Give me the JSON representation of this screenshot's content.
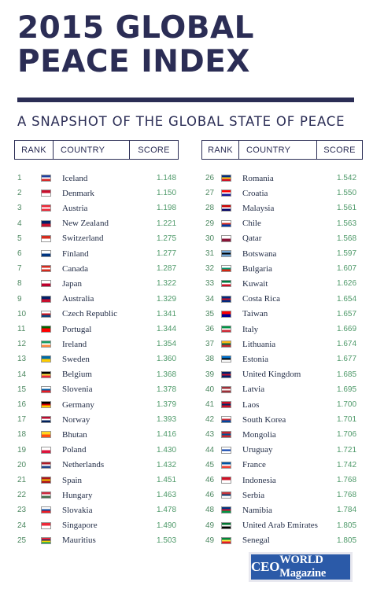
{
  "header": {
    "title_line1": "2015 GLOBAL",
    "title_line2": "PEACE INDEX",
    "subtitle": "A SNAPSHOT OF THE GLOBAL STATE OF PEACE"
  },
  "columns": {
    "rank": "RANK",
    "country": "COUNTRY",
    "score": "SCORE"
  },
  "brand": {
    "logo_ceo": "CEO",
    "logo_rest": "WORLD Magazine"
  },
  "colors": {
    "navy": "#2b2d55",
    "score_green": "#4f9a6a",
    "logo_blue": "#2b5aa8"
  },
  "chart_data": {
    "type": "table",
    "title": "2015 GLOBAL PEACE INDEX",
    "subtitle": "A SNAPSHOT OF THE GLOBAL STATE OF PEACE",
    "headers": [
      "RANK",
      "COUNTRY",
      "SCORE"
    ],
    "rows": [
      {
        "rank": "1",
        "country": "Iceland",
        "score": "1.148",
        "flag": [
          "#1f3f9e",
          "#ffffff",
          "#d72828"
        ]
      },
      {
        "rank": "2",
        "country": "Denmark",
        "score": "1.150",
        "flag": [
          "#c8102e",
          "#ffffff"
        ]
      },
      {
        "rank": "3",
        "country": "Austria",
        "score": "1.198",
        "flag": [
          "#ed2939",
          "#ffffff",
          "#ed2939"
        ]
      },
      {
        "rank": "4",
        "country": "New Zealand",
        "score": "1.221",
        "flag": [
          "#012169",
          "#c8102e"
        ]
      },
      {
        "rank": "5",
        "country": "Switzerland",
        "score": "1.275",
        "flag": [
          "#d52b1e",
          "#ffffff"
        ]
      },
      {
        "rank": "6",
        "country": "Finland",
        "score": "1.277",
        "flag": [
          "#ffffff",
          "#003580"
        ]
      },
      {
        "rank": "7",
        "country": "Canada",
        "score": "1.287",
        "flag": [
          "#d52b1e",
          "#ffffff",
          "#d52b1e"
        ]
      },
      {
        "rank": "8",
        "country": "Japan",
        "score": "1.322",
        "flag": [
          "#ffffff",
          "#bc002d"
        ]
      },
      {
        "rank": "9",
        "country": "Australia",
        "score": "1.329",
        "flag": [
          "#012169",
          "#c8102e"
        ]
      },
      {
        "rank": "10",
        "country": "Czech Republic",
        "score": "1.341",
        "flag": [
          "#ffffff",
          "#d7141a",
          "#11457e"
        ]
      },
      {
        "rank": "11",
        "country": "Portugal",
        "score": "1.344",
        "flag": [
          "#006600",
          "#ff0000",
          "#ff0000"
        ]
      },
      {
        "rank": "12",
        "country": "Ireland",
        "score": "1.354",
        "flag": [
          "#169b62",
          "#ffffff",
          "#ff883e"
        ]
      },
      {
        "rank": "13",
        "country": "Sweden",
        "score": "1.360",
        "flag": [
          "#006aa7",
          "#fecc00"
        ]
      },
      {
        "rank": "14",
        "country": "Belgium",
        "score": "1.368",
        "flag": [
          "#000000",
          "#fae042",
          "#ed2939"
        ]
      },
      {
        "rank": "15",
        "country": "Slovenia",
        "score": "1.378",
        "flag": [
          "#ffffff",
          "#005da4",
          "#ed1c24"
        ]
      },
      {
        "rank": "16",
        "country": "Germany",
        "score": "1.379",
        "flag": [
          "#000000",
          "#dd0000",
          "#ffce00"
        ]
      },
      {
        "rank": "17",
        "country": "Norway",
        "score": "1.393",
        "flag": [
          "#ba0c2f",
          "#ffffff",
          "#00205b"
        ]
      },
      {
        "rank": "18",
        "country": "Bhutan",
        "score": "1.416",
        "flag": [
          "#ffd520",
          "#ff4e12"
        ]
      },
      {
        "rank": "19",
        "country": "Poland",
        "score": "1.430",
        "flag": [
          "#ffffff",
          "#dc143c"
        ]
      },
      {
        "rank": "20",
        "country": "Netherlands",
        "score": "1.432",
        "flag": [
          "#ae1c28",
          "#ffffff",
          "#21468b"
        ]
      },
      {
        "rank": "21",
        "country": "Spain",
        "score": "1.451",
        "flag": [
          "#aa151b",
          "#f1bf00",
          "#aa151b"
        ]
      },
      {
        "rank": "22",
        "country": "Hungary",
        "score": "1.463",
        "flag": [
          "#cd2a3e",
          "#ffffff",
          "#436f4d"
        ]
      },
      {
        "rank": "23",
        "country": "Slovakia",
        "score": "1.478",
        "flag": [
          "#ffffff",
          "#0b4ea2",
          "#ee1c25"
        ]
      },
      {
        "rank": "24",
        "country": "Singapore",
        "score": "1.490",
        "flag": [
          "#ed2939",
          "#ffffff"
        ]
      },
      {
        "rank": "25",
        "country": "Mauritius",
        "score": "1.503",
        "flag": [
          "#ea2839",
          "#1a206d",
          "#ffd500",
          "#00a551"
        ]
      },
      {
        "rank": "26",
        "country": "Romania",
        "score": "1.542",
        "flag": [
          "#002b7f",
          "#fcd116",
          "#ce1126"
        ]
      },
      {
        "rank": "27",
        "country": "Croatia",
        "score": "1.550",
        "flag": [
          "#ff0000",
          "#ffffff",
          "#171796"
        ]
      },
      {
        "rank": "28",
        "country": "Malaysia",
        "score": "1.561",
        "flag": [
          "#cc0001",
          "#ffffff",
          "#010066"
        ]
      },
      {
        "rank": "29",
        "country": "Chile",
        "score": "1.563",
        "flag": [
          "#ffffff",
          "#d52b1e",
          "#0039a6"
        ]
      },
      {
        "rank": "30",
        "country": "Qatar",
        "score": "1.568",
        "flag": [
          "#ffffff",
          "#8a1538"
        ]
      },
      {
        "rank": "31",
        "country": "Botswana",
        "score": "1.597",
        "flag": [
          "#75aadb",
          "#000000",
          "#75aadb"
        ]
      },
      {
        "rank": "32",
        "country": "Bulgaria",
        "score": "1.607",
        "flag": [
          "#ffffff",
          "#00966e",
          "#d62612"
        ]
      },
      {
        "rank": "33",
        "country": "Kuwait",
        "score": "1.626",
        "flag": [
          "#007a3d",
          "#ffffff",
          "#ce1126"
        ]
      },
      {
        "rank": "34",
        "country": "Costa Rica",
        "score": "1.654",
        "flag": [
          "#002b7f",
          "#ce1126",
          "#002b7f"
        ]
      },
      {
        "rank": "35",
        "country": "Taiwan",
        "score": "1.657",
        "flag": [
          "#fe0000",
          "#000095"
        ]
      },
      {
        "rank": "36",
        "country": "Italy",
        "score": "1.669",
        "flag": [
          "#009246",
          "#ffffff",
          "#ce2b37"
        ]
      },
      {
        "rank": "37",
        "country": "Lithuania",
        "score": "1.674",
        "flag": [
          "#fdb913",
          "#006a44",
          "#c1272d"
        ]
      },
      {
        "rank": "38",
        "country": "Estonia",
        "score": "1.677",
        "flag": [
          "#0072ce",
          "#000000",
          "#ffffff"
        ]
      },
      {
        "rank": "39",
        "country": "United Kingdom",
        "score": "1.685",
        "flag": [
          "#012169",
          "#c8102e",
          "#012169"
        ]
      },
      {
        "rank": "40",
        "country": "Latvia",
        "score": "1.695",
        "flag": [
          "#9e3039",
          "#ffffff",
          "#9e3039"
        ]
      },
      {
        "rank": "41",
        "country": "Laos",
        "score": "1.700",
        "flag": [
          "#ce1126",
          "#002868",
          "#ce1126"
        ]
      },
      {
        "rank": "42",
        "country": "South Korea",
        "score": "1.701",
        "flag": [
          "#ffffff",
          "#cd2e3a",
          "#0047a0"
        ]
      },
      {
        "rank": "43",
        "country": "Mongolia",
        "score": "1.706",
        "flag": [
          "#c4272f",
          "#015197",
          "#c4272f"
        ]
      },
      {
        "rank": "44",
        "country": "Uruguay",
        "score": "1.721",
        "flag": [
          "#ffffff",
          "#0038a8",
          "#ffffff"
        ]
      },
      {
        "rank": "45",
        "country": "France",
        "score": "1.742",
        "flag": [
          "#0055a4",
          "#ffffff",
          "#ef4135"
        ]
      },
      {
        "rank": "46",
        "country": "Indonesia",
        "score": "1.768",
        "flag": [
          "#ce1126",
          "#ffffff"
        ]
      },
      {
        "rank": "46",
        "country": "Serbia",
        "score": "1.768",
        "flag": [
          "#c6363c",
          "#0c4076",
          "#ffffff"
        ]
      },
      {
        "rank": "48",
        "country": "Namibia",
        "score": "1.784",
        "flag": [
          "#003580",
          "#d21034",
          "#009543"
        ]
      },
      {
        "rank": "49",
        "country": "United Arab Emirates",
        "score": "1.805",
        "flag": [
          "#00732f",
          "#ffffff",
          "#000000"
        ]
      },
      {
        "rank": "49",
        "country": "Senegal",
        "score": "1.805",
        "flag": [
          "#00853f",
          "#fdef42",
          "#e31b23"
        ]
      }
    ]
  }
}
